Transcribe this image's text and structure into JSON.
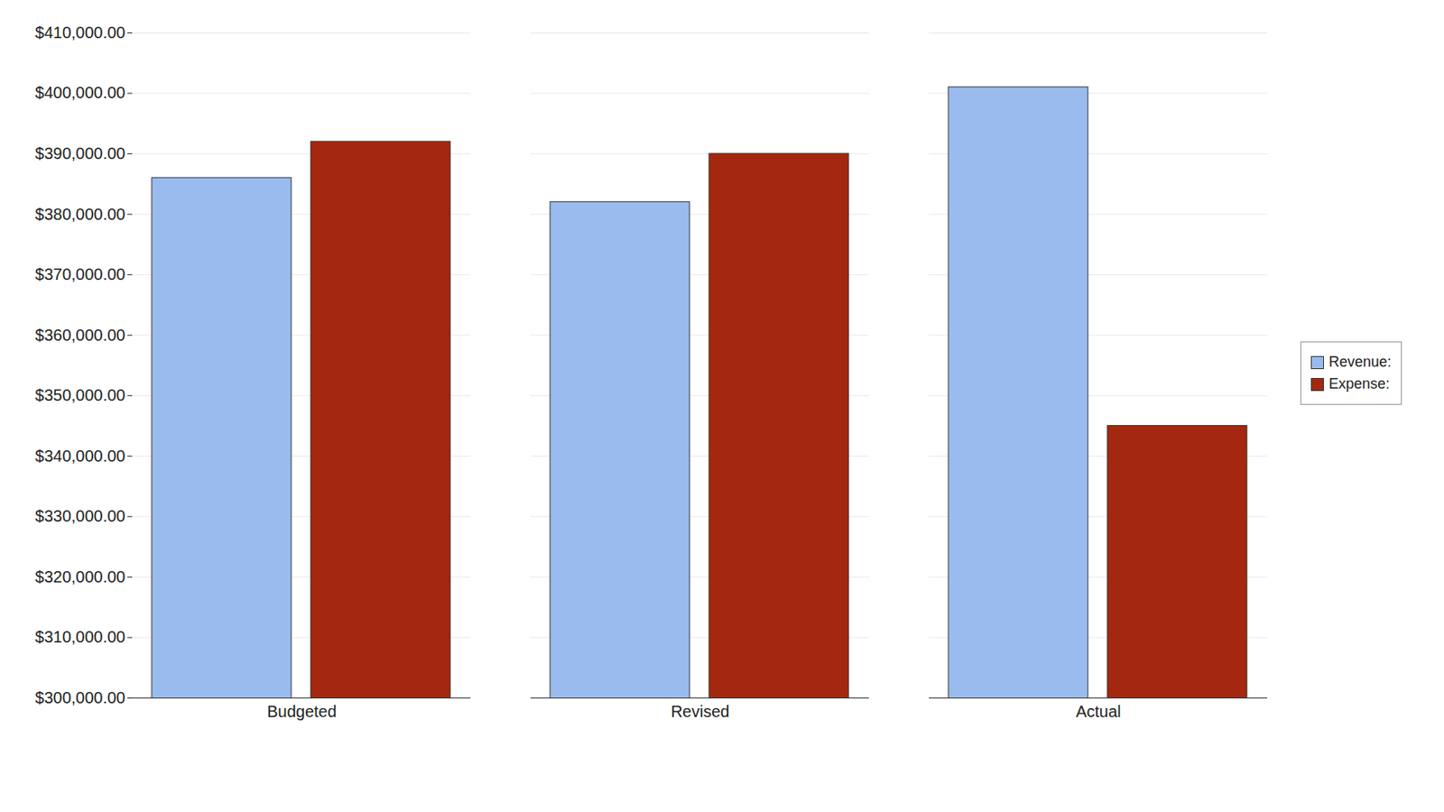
{
  "chart_data": {
    "type": "bar",
    "categories": [
      "Budgeted",
      "Revised",
      "Actual"
    ],
    "series": [
      {
        "name": "Revenue:",
        "color": "#99bbee",
        "values": [
          386000,
          382000,
          401000
        ]
      },
      {
        "name": "Expense:",
        "color": "#a3280f",
        "values": [
          392000,
          390000,
          345000
        ]
      }
    ],
    "ylim": [
      300000,
      410000
    ],
    "yticks": [
      {
        "value": 300000,
        "label": "$300,000.00"
      },
      {
        "value": 310000,
        "label": "$310,000.00"
      },
      {
        "value": 320000,
        "label": "$320,000.00"
      },
      {
        "value": 330000,
        "label": "$330,000.00"
      },
      {
        "value": 340000,
        "label": "$340,000.00"
      },
      {
        "value": 350000,
        "label": "$350,000.00"
      },
      {
        "value": 360000,
        "label": "$360,000.00"
      },
      {
        "value": 370000,
        "label": "$370,000.00"
      },
      {
        "value": 380000,
        "label": "$380,000.00"
      },
      {
        "value": 390000,
        "label": "$390,000.00"
      },
      {
        "value": 400000,
        "label": "$400,000.00"
      },
      {
        "value": 410000,
        "label": "$410,000.00"
      }
    ],
    "grid": true,
    "legend": "right"
  }
}
